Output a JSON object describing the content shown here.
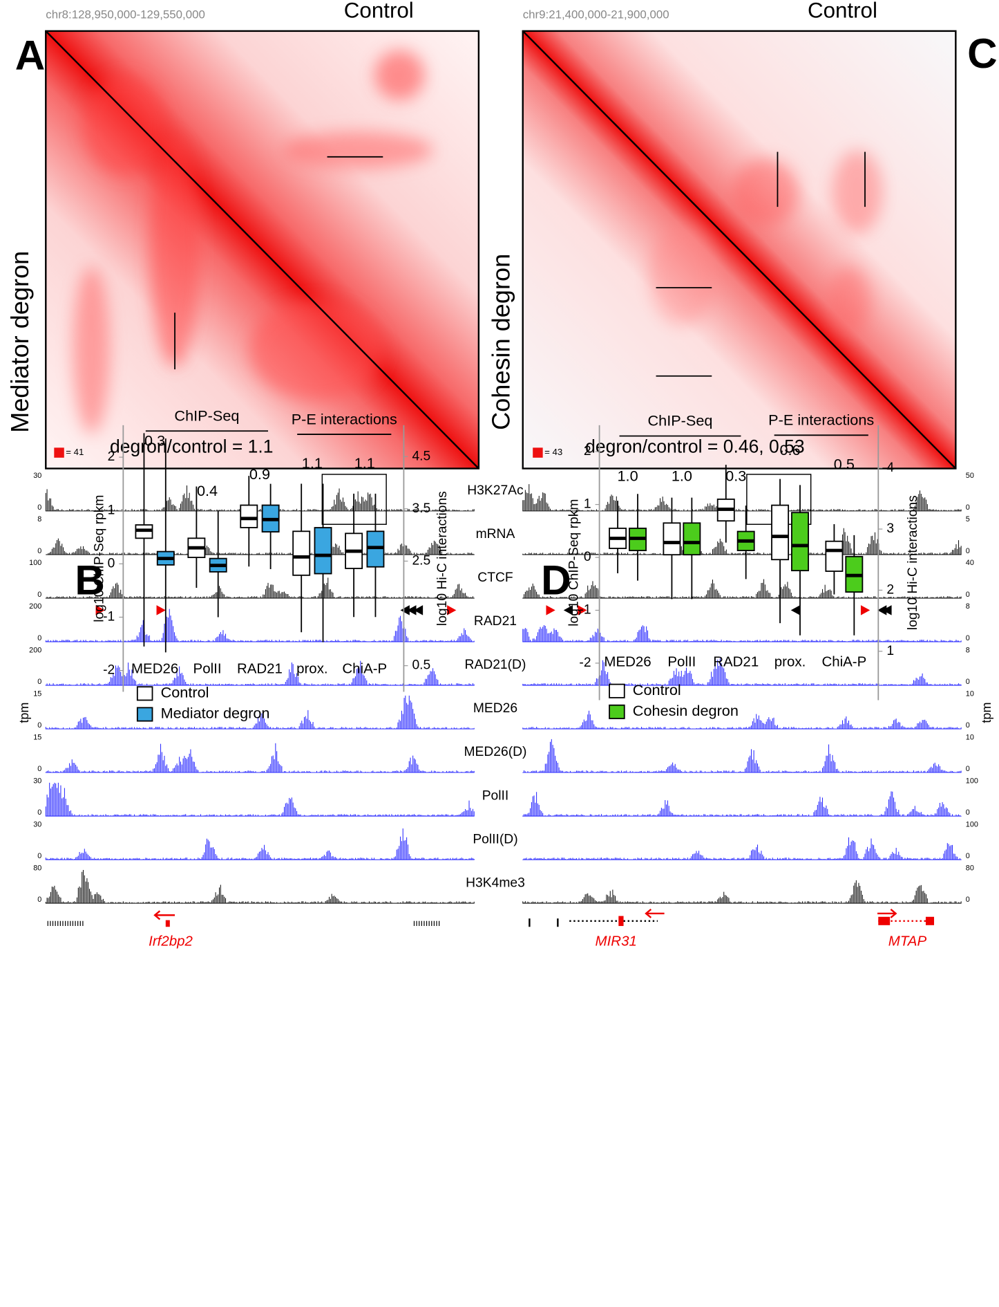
{
  "panels": [
    {
      "letter": "A",
      "region": "chr8:128,950,000-129,550,000",
      "top_label": "Control",
      "side_label": "Mediator degron",
      "scale_label": "= 41",
      "ratio": "degron/control = 1.1",
      "genes": [
        "Irf2bp2"
      ]
    },
    {
      "letter": "C",
      "region": "chr9:21,400,000-21,900,000",
      "top_label": "Control",
      "side_label": "Cohesin degron",
      "scale_label": "= 43",
      "ratio": "degron/control = 0.46, 0.53",
      "genes": [
        "MIR31",
        "MTAP"
      ]
    }
  ],
  "tracks": {
    "unit": "tpm",
    "rows": [
      {
        "name": "H3K27Ac",
        "color": "#000000",
        "left": [
          "30",
          "0"
        ],
        "right": [
          "50",
          "0"
        ]
      },
      {
        "name": "mRNA",
        "color": "#000000",
        "left": [
          "8",
          "0"
        ],
        "right": [
          "5",
          "0"
        ]
      },
      {
        "name": "CTCF",
        "color": "#000000",
        "left": [
          "100",
          "0"
        ],
        "right": [
          "40",
          "0"
        ]
      },
      {
        "name": "RAD21",
        "color": "#1a1aff",
        "left": [
          "200",
          "0"
        ],
        "right": [
          "8",
          "0"
        ]
      },
      {
        "name": "RAD21(D)",
        "color": "#1a1aff",
        "left": [
          "200",
          "0"
        ],
        "right": [
          "8",
          "0"
        ]
      },
      {
        "name": "MED26",
        "color": "#1a1aff",
        "left": [
          "15",
          "0"
        ],
        "right": [
          "10",
          "0"
        ]
      },
      {
        "name": "MED26(D)",
        "color": "#1a1aff",
        "left": [
          "15",
          "0"
        ],
        "right": [
          "10",
          "0"
        ]
      },
      {
        "name": "PolII",
        "color": "#1a1aff",
        "left": [
          "30",
          "0"
        ],
        "right": [
          "100",
          "0"
        ]
      },
      {
        "name": "PolII(D)",
        "color": "#1a1aff",
        "left": [
          "30",
          "0"
        ],
        "right": [
          "100",
          "0"
        ]
      },
      {
        "name": "H3K4me3",
        "color": "#000000",
        "left": [
          "80",
          "0"
        ],
        "right": [
          "80",
          "0"
        ]
      }
    ]
  },
  "chart_data": [
    {
      "type": "box",
      "letter": "B",
      "ylabel": "log10 ChIP-Seq rpkm",
      "y2label": "log10 Hi-C interactions",
      "categories": [
        "MED26",
        "PolII",
        "RAD21",
        "prox.",
        "ChiA-P"
      ],
      "axes": [
        "y",
        "y",
        "y",
        "y2",
        "y2"
      ],
      "annotations": [
        "0.3",
        "0.4",
        "0.9",
        "1.1",
        "1.1"
      ],
      "groups": [
        {
          "label": "ChIP-Seq"
        },
        {
          "label": "P-E interactions"
        }
      ],
      "ylim": [
        -2.4,
        2.6
      ],
      "yticks": [
        2,
        1,
        0,
        -1,
        -2
      ],
      "y2lim": [
        0,
        5.1
      ],
      "y2ticks": [
        4.5,
        3.5,
        2.5,
        0.5
      ],
      "series": [
        {
          "name": "Control",
          "color": "#ffffff",
          "values": [
            [
              -1.55,
              0.48,
              0.63,
              0.73,
              2.45
            ],
            [
              -0.45,
              0.12,
              0.3,
              0.48,
              1.45
            ],
            [
              -0.05,
              0.68,
              0.85,
              1.1,
              1.65
            ],
            [
              1.14,
              2.23,
              2.58,
              3.07,
              3.98
            ],
            [
              1.43,
              2.36,
              2.69,
              3.03,
              3.79
            ]
          ]
        },
        {
          "name": "Mediator degron",
          "color": "#3aa6e0",
          "values": [
            [
              -1.66,
              -0.02,
              0.1,
              0.23,
              2.35
            ],
            [
              -1.0,
              -0.15,
              -0.03,
              0.1,
              1.0
            ],
            [
              -0.1,
              0.6,
              0.83,
              1.1,
              1.5
            ],
            [
              0.95,
              2.26,
              2.61,
              3.14,
              3.98
            ],
            [
              1.43,
              2.39,
              2.76,
              3.07,
              3.79
            ]
          ]
        }
      ]
    },
    {
      "type": "box",
      "letter": "D",
      "ylabel": "log10 ChIP-Seq rpkm",
      "y2label": "log10 Hi-C interactions",
      "categories": [
        "MED26",
        "PolII",
        "RAD21",
        "prox.",
        "ChiA-P"
      ],
      "axes": [
        "y",
        "y",
        "y",
        "y2",
        "y2"
      ],
      "annotations": [
        "1.0",
        "1.0",
        "0.3",
        "0.6",
        "0.5"
      ],
      "groups": [
        {
          "label": "ChIP-Seq"
        },
        {
          "label": "P-E interactions"
        }
      ],
      "ylim": [
        -2.7,
        2.5
      ],
      "yticks": [
        2,
        1,
        0,
        -1,
        -2
      ],
      "y2lim": [
        0.2,
        4.7
      ],
      "y2ticks": [
        4,
        3,
        2,
        1
      ],
      "series": [
        {
          "name": "Control",
          "color": "#ffffff",
          "values": [
            [
              -0.3,
              0.17,
              0.36,
              0.55,
              1.07
            ],
            [
              -0.79,
              0.05,
              0.28,
              0.65,
              1.13
            ],
            [
              0.28,
              0.69,
              0.91,
              1.1,
              1.75
            ],
            [
              1.46,
              2.5,
              2.88,
              3.39,
              3.82
            ],
            [
              1.93,
              2.31,
              2.65,
              2.8,
              3.08
            ]
          ]
        },
        {
          "name": "Cohesin degron",
          "color": "#4ccc1c",
          "values": [
            [
              -0.44,
              0.13,
              0.36,
              0.55,
              1.2
            ],
            [
              -0.79,
              0.05,
              0.28,
              0.65,
              1.13
            ],
            [
              -0.41,
              0.13,
              0.31,
              0.49,
              0.98
            ],
            [
              1.26,
              2.32,
              2.73,
              3.27,
              3.72
            ],
            [
              1.26,
              1.97,
              2.24,
              2.55,
              2.9
            ]
          ]
        }
      ]
    }
  ]
}
